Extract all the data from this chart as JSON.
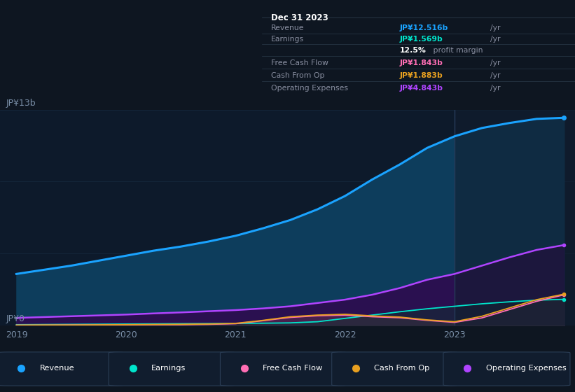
{
  "bg_color": "#0e1621",
  "chart_bg": "#0d1a2b",
  "grid_color": "#1a2e45",
  "years": [
    2019.0,
    2019.25,
    2019.5,
    2019.75,
    2020.0,
    2020.25,
    2020.5,
    2020.75,
    2021.0,
    2021.25,
    2021.5,
    2021.75,
    2022.0,
    2022.25,
    2022.5,
    2022.75,
    2023.0,
    2023.25,
    2023.5,
    2023.75,
    2024.0
  ],
  "revenue": [
    3.1,
    3.35,
    3.6,
    3.9,
    4.2,
    4.5,
    4.75,
    5.05,
    5.4,
    5.85,
    6.35,
    7.0,
    7.8,
    8.8,
    9.7,
    10.7,
    11.4,
    11.9,
    12.2,
    12.45,
    12.516
  ],
  "earnings": [
    0.04,
    0.05,
    0.06,
    0.07,
    0.08,
    0.09,
    0.1,
    0.11,
    0.12,
    0.13,
    0.15,
    0.22,
    0.42,
    0.62,
    0.82,
    1.0,
    1.15,
    1.3,
    1.42,
    1.52,
    1.569
  ],
  "free_cash": [
    0.01,
    0.01,
    0.02,
    0.02,
    0.03,
    0.04,
    0.04,
    0.06,
    0.1,
    0.28,
    0.48,
    0.58,
    0.62,
    0.52,
    0.46,
    0.3,
    0.18,
    0.45,
    0.95,
    1.45,
    1.843
  ],
  "cash_from_op": [
    0.01,
    0.02,
    0.02,
    0.03,
    0.04,
    0.05,
    0.06,
    0.08,
    0.12,
    0.3,
    0.52,
    0.62,
    0.67,
    0.57,
    0.5,
    0.33,
    0.22,
    0.55,
    1.05,
    1.55,
    1.883
  ],
  "op_expenses": [
    0.45,
    0.5,
    0.55,
    0.6,
    0.65,
    0.72,
    0.78,
    0.85,
    0.92,
    1.02,
    1.15,
    1.35,
    1.55,
    1.85,
    2.25,
    2.75,
    3.1,
    3.6,
    4.1,
    4.55,
    4.843
  ],
  "revenue_color": "#1aa3ff",
  "earnings_color": "#00e5cc",
  "free_cash_color": "#ff6eb4",
  "cash_from_op_color": "#e8a020",
  "op_expenses_color": "#b044ff",
  "revenue_fill": "#0d3d5c",
  "op_fill": "#2a1050",
  "ylabel_top": "JP¥13b",
  "ylabel_bottom": "JP¥0",
  "highlight_x": 2023.0,
  "tooltip_title": "Dec 31 2023",
  "tooltip_rows": [
    {
      "label": "Revenue",
      "value": "JP¥12.516b",
      "suffix": " /yr",
      "color": "#1aa3ff",
      "is_margin": false
    },
    {
      "label": "Earnings",
      "value": "JP¥1.569b",
      "suffix": " /yr",
      "color": "#00e5cc",
      "is_margin": false
    },
    {
      "label": "",
      "value": "12.5%",
      "suffix": " profit margin",
      "color": "#ffffff",
      "is_margin": true
    },
    {
      "label": "Free Cash Flow",
      "value": "JP¥1.843b",
      "suffix": " /yr",
      "color": "#ff6eb4",
      "is_margin": false
    },
    {
      "label": "Cash From Op",
      "value": "JP¥1.883b",
      "suffix": " /yr",
      "color": "#e8a020",
      "is_margin": false
    },
    {
      "label": "Operating Expenses",
      "value": "JP¥4.843b",
      "suffix": " /yr",
      "color": "#b044ff",
      "is_margin": false
    }
  ],
  "legend_items": [
    {
      "label": "Revenue",
      "color": "#1aa3ff"
    },
    {
      "label": "Earnings",
      "color": "#00e5cc"
    },
    {
      "label": "Free Cash Flow",
      "color": "#ff6eb4"
    },
    {
      "label": "Cash From Op",
      "color": "#e8a020"
    },
    {
      "label": "Operating Expenses",
      "color": "#b044ff"
    }
  ],
  "xticks": [
    2019,
    2020,
    2021,
    2022,
    2023
  ],
  "ylim": [
    0,
    13
  ],
  "xmin": 2018.85,
  "xmax": 2024.1,
  "figsize": [
    8.21,
    5.6
  ],
  "dpi": 100
}
